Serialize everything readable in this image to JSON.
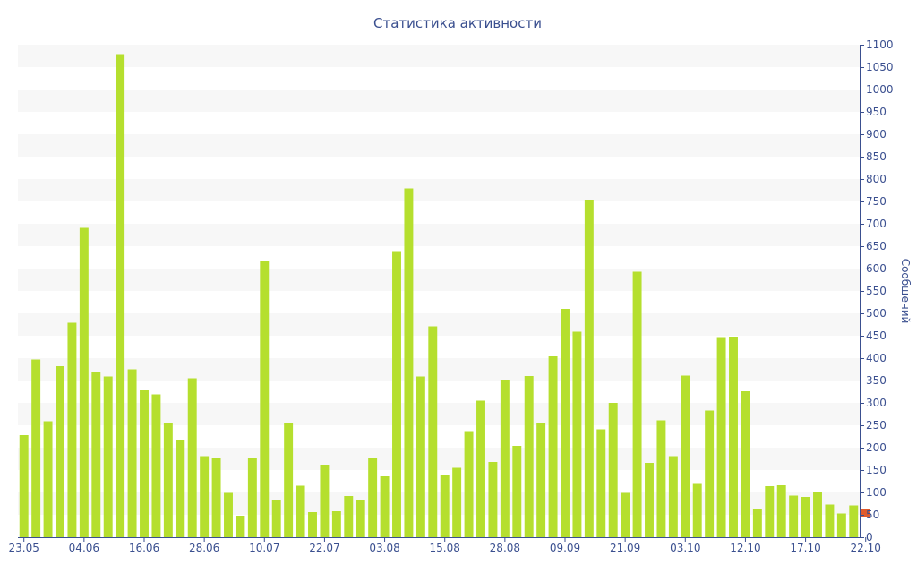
{
  "chart_data": {
    "type": "bar",
    "title": "Статистика активности",
    "xlabel": "",
    "ylabel": "Сообщений",
    "ylim": [
      0,
      1100
    ],
    "y_ticks": [
      0,
      50,
      100,
      150,
      200,
      250,
      300,
      350,
      400,
      450,
      500,
      550,
      600,
      650,
      700,
      750,
      800,
      850,
      900,
      950,
      1000,
      1050,
      1100
    ],
    "x_tick_labels": [
      {
        "index": 0,
        "label": "23.05"
      },
      {
        "index": 5,
        "label": "04.06"
      },
      {
        "index": 10,
        "label": "16.06"
      },
      {
        "index": 15,
        "label": "28.06"
      },
      {
        "index": 20,
        "label": "10.07"
      },
      {
        "index": 25,
        "label": "22.07"
      },
      {
        "index": 30,
        "label": "03.08"
      },
      {
        "index": 35,
        "label": "15.08"
      },
      {
        "index": 40,
        "label": "28.08"
      },
      {
        "index": 45,
        "label": "09.09"
      },
      {
        "index": 50,
        "label": "21.09"
      },
      {
        "index": 55,
        "label": "03.10"
      },
      {
        "index": 60,
        "label": "12.10"
      },
      {
        "index": 65,
        "label": "17.10"
      },
      {
        "index": 70,
        "label": "22.10"
      }
    ],
    "values": [
      228,
      397,
      259,
      382,
      479,
      691,
      368,
      359,
      1079,
      375,
      328,
      319,
      256,
      217,
      355,
      181,
      177,
      99,
      48,
      177,
      616,
      83,
      254,
      115,
      56,
      162,
      58,
      92,
      82,
      176,
      136,
      639,
      779,
      359,
      471,
      138,
      155,
      237,
      305,
      168,
      352,
      204,
      360,
      256,
      404,
      510,
      459,
      754,
      241,
      300,
      99,
      593,
      166,
      261,
      181,
      361,
      119,
      283,
      447,
      448,
      326,
      64,
      114,
      116,
      93,
      90,
      102,
      73,
      53,
      71
    ],
    "highlight": {
      "index": 70,
      "total": 62,
      "highlighted_part": 17
    },
    "grid": "alternating-bands",
    "colors": {
      "bar": "#b5df2e",
      "highlight": "#e05a2b",
      "text": "#3a4f8f",
      "band": "#f7f7f7",
      "axis": "#3a4f8f"
    }
  }
}
